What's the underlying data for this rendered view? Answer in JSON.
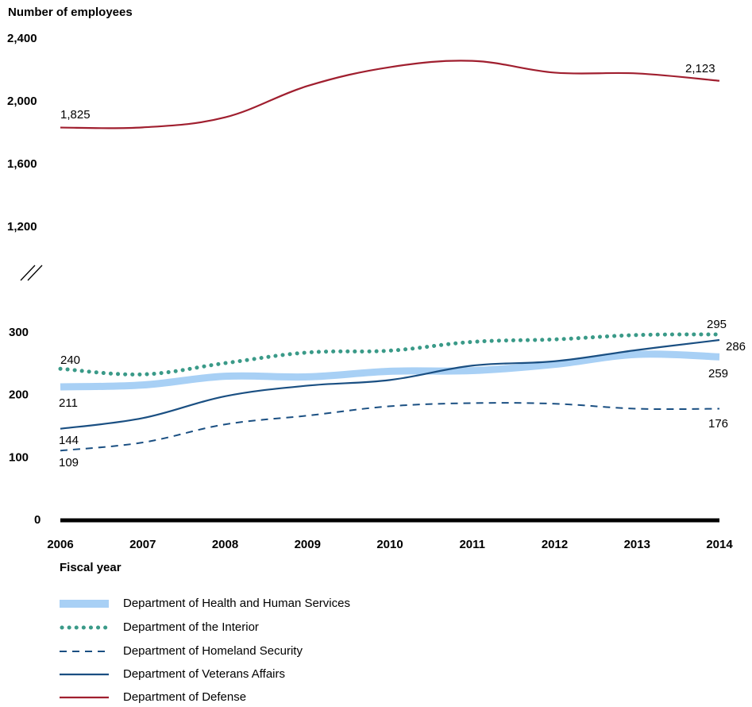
{
  "chart_data": {
    "type": "line",
    "ylabel": "Number of employees",
    "xlabel": "Fiscal year",
    "x": [
      "2006",
      "2007",
      "2008",
      "2009",
      "2010",
      "2011",
      "2012",
      "2013",
      "2014"
    ],
    "y_ticks_upper": [
      "1,200",
      "1,600",
      "2,000",
      "2,400"
    ],
    "y_ticks_lower": [
      "0",
      "100",
      "200",
      "300"
    ],
    "axis_break": true,
    "ylim_upper": [
      1200,
      2400
    ],
    "ylim_lower": [
      0,
      300
    ],
    "series": [
      {
        "name": "Department of Health and Human Services",
        "style": "thick-light",
        "color": "#a8d0f5",
        "values": [
          211,
          214,
          228,
          227,
          236,
          237,
          247,
          263,
          259
        ],
        "labels": {
          "start": "211",
          "end": "259"
        }
      },
      {
        "name": "Department of the Interior",
        "style": "dotted",
        "color": "#3a9a88",
        "values": [
          240,
          231,
          249,
          266,
          269,
          283,
          287,
          294,
          295
        ],
        "labels": {
          "start": "240",
          "end": "295"
        }
      },
      {
        "name": "Department of Homeland Security",
        "style": "dashed",
        "color": "#1a4f82",
        "values": [
          109,
          122,
          151,
          165,
          180,
          185,
          184,
          176,
          176
        ],
        "labels": {
          "start": "109",
          "end": "176"
        }
      },
      {
        "name": "Department of Veterans Affairs",
        "style": "solid",
        "color": "#1a4f82",
        "values": [
          144,
          161,
          196,
          213,
          222,
          245,
          252,
          270,
          286
        ],
        "labels": {
          "start": "144",
          "end": "286"
        }
      },
      {
        "name": "Department of Defense",
        "style": "solid",
        "color": "#a01f2f",
        "values": [
          1825,
          1826,
          1890,
          2090,
          2210,
          2250,
          2175,
          2170,
          2123
        ],
        "labels": {
          "start": "1,825",
          "end": "2,123"
        }
      }
    ]
  }
}
